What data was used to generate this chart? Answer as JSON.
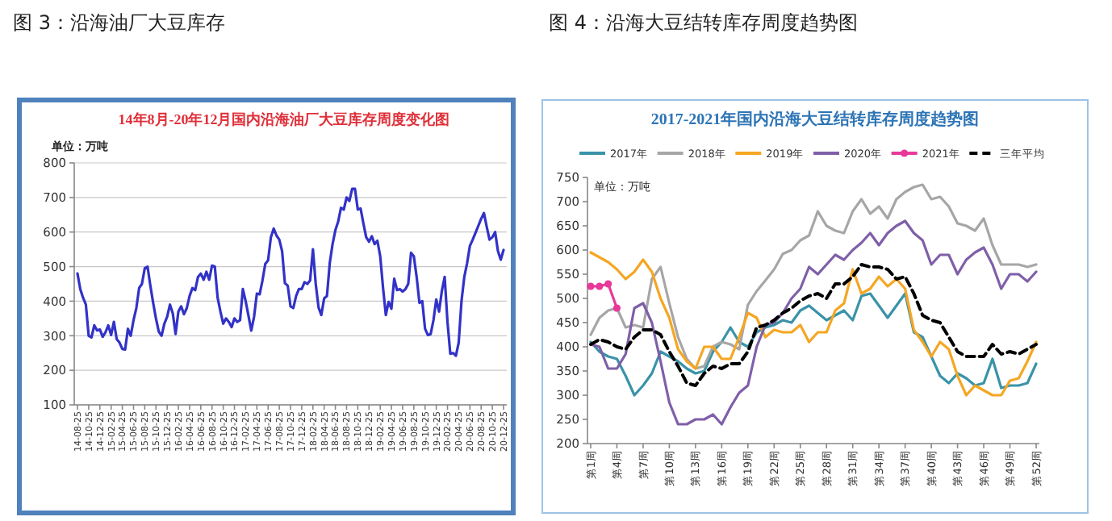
{
  "chart_data": [
    {
      "type": "line",
      "title": "图 3：沿海油厂大豆库存",
      "subtitle": "14年8月-20年12月国内沿海油厂大豆库存周度变化图",
      "annotations": [
        "单位：万吨"
      ],
      "categories": [
        "14-08-25",
        null,
        null,
        null,
        "14-10-25",
        null,
        null,
        null,
        "14-12-25",
        null,
        null,
        null,
        "15-02-25",
        null,
        null,
        null,
        "15-04-25",
        null,
        null,
        null,
        "15-06-25",
        null,
        null,
        null,
        "15-08-25",
        null,
        null,
        null,
        "15-10-25",
        null,
        null,
        null,
        "15-12-25",
        null,
        null,
        null,
        "16-02-25",
        null,
        null,
        null,
        "16-04-25",
        null,
        null,
        null,
        "16-06-25",
        null,
        null,
        null,
        "16-08-25",
        null,
        null,
        null,
        "16-10-25",
        null,
        null,
        null,
        "16-12-25",
        null,
        null,
        null,
        "17-02-25",
        null,
        null,
        null,
        "17-04-25",
        null,
        null,
        null,
        "17-06-25",
        null,
        null,
        null,
        "17-08-25",
        null,
        null,
        null,
        "17-10-25",
        null,
        null,
        null,
        "17-12-25",
        null,
        null,
        null,
        "18-02-25",
        null,
        null,
        null,
        "18-04-25",
        null,
        null,
        null,
        "18-06-25",
        null,
        null,
        null,
        "18-08-25",
        null,
        null,
        null,
        "18-10-25",
        null,
        null,
        null,
        "18-12-25",
        null,
        null,
        null,
        "19-02-25",
        null,
        null,
        null,
        "19-04-25",
        null,
        null,
        null,
        "19-06-25",
        null,
        null,
        null,
        "19-08-25",
        null,
        null,
        null,
        "19-10-25",
        null,
        null,
        null,
        "19-12-25",
        null,
        null,
        null,
        "20-02-25",
        null,
        null,
        null,
        "20-04-25",
        null,
        null,
        null,
        "20-06-25",
        null,
        null,
        null,
        "20-08-25",
        null,
        null,
        null,
        "20-10-25",
        null,
        null,
        null,
        "20-12-25"
      ],
      "series": [
        {
          "color": "#3232c8",
          "values": [
            480,
            435,
            410,
            390,
            300,
            295,
            330,
            315,
            318,
            297,
            310,
            330,
            302,
            340,
            290,
            280,
            262,
            260,
            320,
            300,
            345,
            380,
            438,
            450,
            495,
            500,
            445,
            395,
            350,
            312,
            300,
            335,
            355,
            390,
            365,
            305,
            370,
            385,
            362,
            380,
            415,
            438,
            432,
            470,
            480,
            462,
            485,
            462,
            503,
            500,
            410,
            370,
            335,
            350,
            340,
            325,
            350,
            340,
            345,
            435,
            400,
            358,
            315,
            355,
            422,
            420,
            460,
            508,
            518,
            585,
            610,
            590,
            578,
            545,
            452,
            445,
            385,
            380,
            415,
            435,
            435,
            455,
            450,
            460,
            550,
            450,
            382,
            360,
            408,
            415,
            510,
            565,
            605,
            630,
            670,
            665,
            700,
            690,
            725,
            725,
            665,
            668,
            625,
            585,
            572,
            588,
            565,
            575,
            530,
            440,
            360,
            398,
            378,
            465,
            432,
            435,
            428,
            435,
            450,
            540,
            530,
            470,
            395,
            400,
            320,
            302,
            305,
            345,
            405,
            370,
            430,
            470,
            340,
            248,
            250,
            242,
            280,
            400,
            470,
            510,
            560,
            578,
            598,
            618,
            638,
            655,
            615,
            578,
            585,
            600,
            545,
            520,
            548
          ]
        }
      ],
      "ylim": [
        100,
        800
      ],
      "yticks": [
        100,
        200,
        300,
        400,
        500,
        600,
        700,
        800
      ],
      "grid": "y"
    },
    {
      "type": "line",
      "title": "图 4：沿海大豆结转库存周度趋势图",
      "subtitle": "2017-2021年国内沿海大豆结转库存周度趋势图",
      "annotations": [
        "单位：万吨"
      ],
      "categories": [
        "第1周",
        null,
        null,
        "第4周",
        null,
        null,
        "第7周",
        null,
        null,
        "第10周",
        null,
        null,
        "第13周",
        null,
        null,
        "第16周",
        null,
        null,
        "第19周",
        null,
        null,
        "第22周",
        null,
        null,
        "第25周",
        null,
        null,
        "第28周",
        null,
        null,
        "第31周",
        null,
        null,
        "第34周",
        null,
        null,
        "第37周",
        null,
        null,
        "第40周",
        null,
        null,
        "第43周",
        null,
        null,
        "第46周",
        null,
        null,
        "第49周",
        null,
        null,
        "第52周"
      ],
      "series": [
        {
          "name": "2017年",
          "color": "#3a93a8",
          "values": [
            410,
            390,
            380,
            375,
            340,
            300,
            320,
            345,
            390,
            380,
            370,
            355,
            345,
            350,
            390,
            410,
            440,
            410,
            400,
            430,
            440,
            445,
            455,
            450,
            475,
            485,
            470,
            455,
            465,
            475,
            455,
            505,
            510,
            485,
            460,
            485,
            510,
            430,
            420,
            380,
            340,
            325,
            345,
            335,
            320,
            325,
            375,
            315,
            320,
            320,
            325,
            365
          ]
        },
        {
          "name": "2018年",
          "color": "#a6a6a6",
          "values": [
            425,
            460,
            475,
            480,
            440,
            445,
            440,
            540,
            565,
            490,
            420,
            375,
            355,
            360,
            400,
            410,
            405,
            395,
            487,
            515,
            537,
            560,
            592,
            600,
            620,
            630,
            680,
            650,
            640,
            635,
            680,
            705,
            675,
            690,
            665,
            705,
            720,
            730,
            735,
            705,
            710,
            690,
            655,
            650,
            640,
            665,
            610,
            570,
            570,
            570,
            565,
            570
          ]
        },
        {
          "name": "2019年",
          "color": "#f5a623",
          "values": [
            595,
            585,
            575,
            560,
            540,
            555,
            580,
            555,
            500,
            460,
            395,
            370,
            355,
            400,
            400,
            375,
            375,
            420,
            470,
            460,
            420,
            435,
            430,
            430,
            445,
            410,
            430,
            430,
            475,
            490,
            560,
            510,
            520,
            545,
            525,
            540,
            520,
            435,
            410,
            380,
            410,
            395,
            340,
            300,
            320,
            310,
            300,
            300,
            330,
            335,
            370,
            410
          ]
        },
        {
          "name": "2020年",
          "color": "#7f5fa8",
          "values": [
            405,
            400,
            355,
            355,
            385,
            480,
            490,
            450,
            370,
            285,
            240,
            240,
            250,
            250,
            260,
            240,
            275,
            305,
            320,
            400,
            445,
            450,
            470,
            500,
            520,
            565,
            550,
            570,
            590,
            580,
            600,
            615,
            635,
            610,
            635,
            650,
            660,
            635,
            620,
            570,
            590,
            590,
            550,
            580,
            595,
            605,
            570,
            520,
            550,
            550,
            535,
            555
          ]
        },
        {
          "name": "2021年",
          "color": "#e8389a",
          "marker": "circle",
          "values": [
            525,
            525,
            530,
            480,
            null,
            null,
            null,
            null,
            null,
            null,
            null,
            null,
            null,
            null,
            null,
            null,
            null,
            null,
            null,
            null,
            null,
            null,
            null,
            null,
            null,
            null,
            null,
            null,
            null,
            null,
            null,
            null,
            null,
            null,
            null,
            null,
            null,
            null,
            null,
            null,
            null,
            null,
            null,
            null,
            null,
            null,
            null,
            null,
            null,
            null,
            null,
            null
          ]
        },
        {
          "name": "三年平均",
          "color": "#000000",
          "line_style": "dashed",
          "values": [
            405,
            415,
            410,
            400,
            395,
            420,
            435,
            435,
            425,
            390,
            360,
            325,
            320,
            345,
            360,
            355,
            365,
            365,
            390,
            440,
            445,
            455,
            470,
            480,
            495,
            505,
            510,
            500,
            530,
            530,
            545,
            570,
            565,
            565,
            560,
            540,
            545,
            510,
            465,
            455,
            450,
            420,
            390,
            380,
            380,
            380,
            405,
            385,
            390,
            385,
            395,
            405
          ]
        }
      ],
      "ylim": [
        200,
        750
      ],
      "yticks": [
        200,
        250,
        300,
        350,
        400,
        450,
        500,
        550,
        600,
        650,
        700,
        750
      ],
      "legend": "top"
    }
  ]
}
